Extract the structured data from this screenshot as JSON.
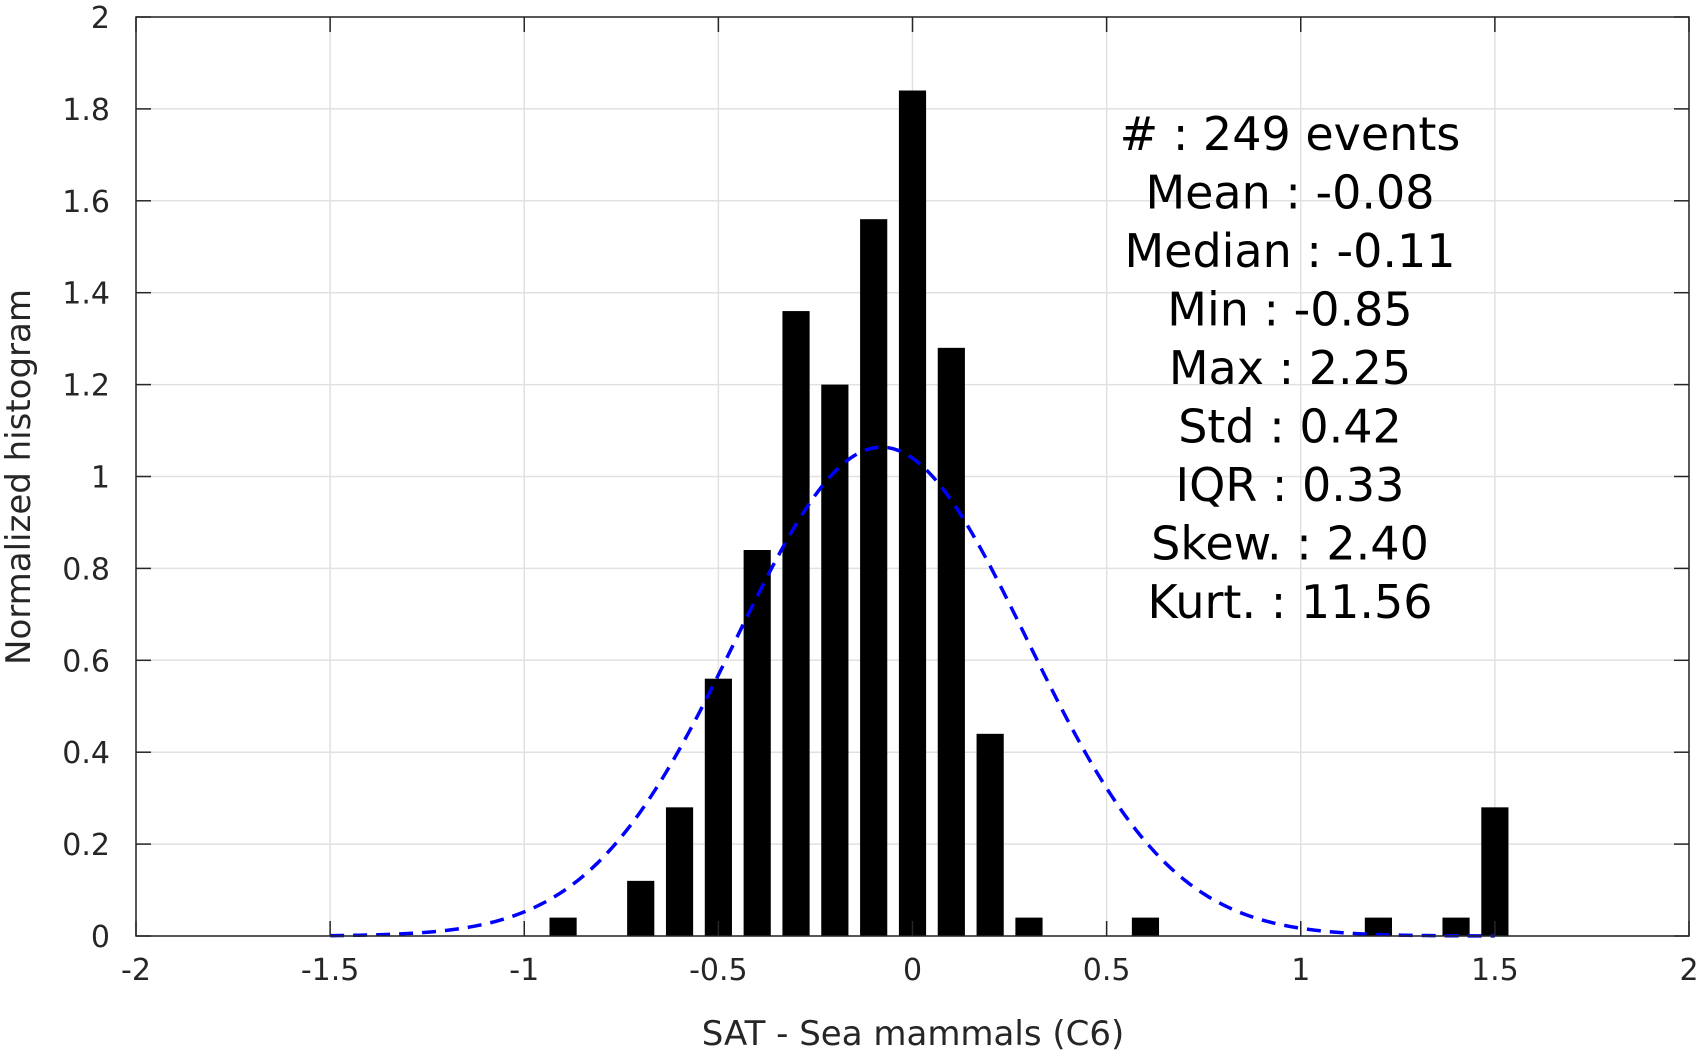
{
  "chart_data": {
    "type": "bar",
    "title": "",
    "xlabel": "SAT - Sea mammals (C6)",
    "ylabel": "Normalized histogram",
    "xlim": [
      -2,
      2
    ],
    "ylim": [
      0,
      2
    ],
    "grid": true,
    "x_ticks": [
      "-2",
      "-1.5",
      "-1",
      "-0.5",
      "0",
      "0.5",
      "1",
      "1.5",
      "2"
    ],
    "y_ticks": [
      "0",
      "0.2",
      "0.4",
      "0.6",
      "0.8",
      "1",
      "1.2",
      "1.4",
      "1.6",
      "1.8",
      "2"
    ],
    "bar_width": 0.07,
    "bars": [
      {
        "x": -0.9,
        "y": 0.04
      },
      {
        "x": -0.7,
        "y": 0.12
      },
      {
        "x": -0.6,
        "y": 0.28
      },
      {
        "x": -0.5,
        "y": 0.56
      },
      {
        "x": -0.4,
        "y": 0.84
      },
      {
        "x": -0.3,
        "y": 1.36
      },
      {
        "x": -0.2,
        "y": 1.2
      },
      {
        "x": -0.1,
        "y": 1.56
      },
      {
        "x": 0.0,
        "y": 1.84
      },
      {
        "x": 0.1,
        "y": 1.28
      },
      {
        "x": 0.2,
        "y": 0.44
      },
      {
        "x": 0.3,
        "y": 0.04
      },
      {
        "x": 0.6,
        "y": 0.04
      },
      {
        "x": 1.2,
        "y": 0.04
      },
      {
        "x": 1.4,
        "y": 0.04
      },
      {
        "x": 1.5,
        "y": 0.28
      }
    ],
    "fit_curve": {
      "mean": -0.08,
      "std": 0.375,
      "x_range": [
        -1.5,
        1.5
      ],
      "color": "#0000ff",
      "style": "dashed"
    },
    "bar_color": "#000000",
    "stats": [
      {
        "label": "#  ",
        "value": ": 249 events"
      },
      {
        "label": "Mean",
        "value": ": -0.08"
      },
      {
        "label": "Median",
        "value": ": -0.11"
      },
      {
        "label": "Min",
        "value": ": -0.85"
      },
      {
        "label": "Max",
        "value": ": 2.25"
      },
      {
        "label": "Std",
        "value": ": 0.42"
      },
      {
        "label": "IQR",
        "value": ": 0.33"
      },
      {
        "label": "Skew.",
        "value": ": 2.40"
      },
      {
        "label": "Kurt.",
        "value": ": 11.56"
      }
    ]
  }
}
